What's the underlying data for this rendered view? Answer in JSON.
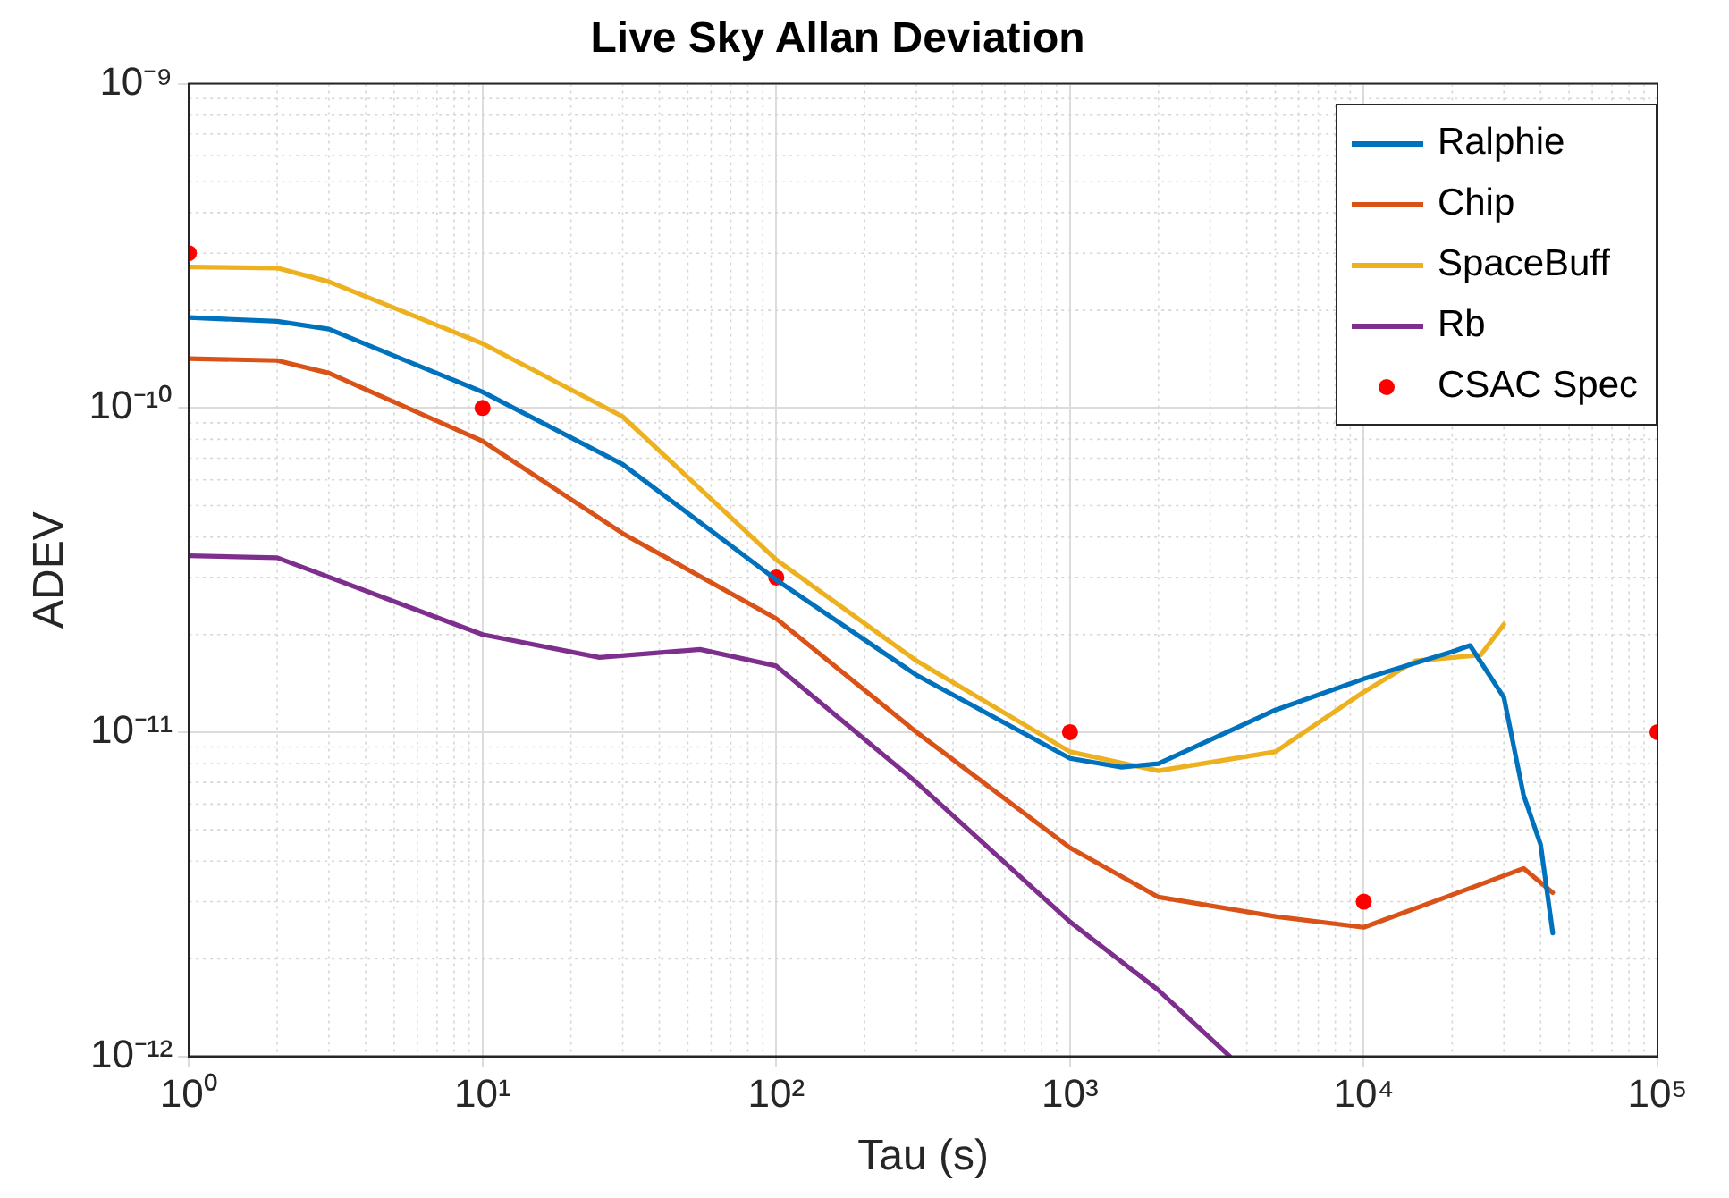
{
  "chart_data": {
    "type": "line",
    "title": "Live Sky Allan Deviation",
    "xlabel": "Tau (s)",
    "ylabel": "ADEV",
    "log": "xy",
    "grid": true,
    "legend": "top right",
    "marker": "none",
    "line_style": "solid",
    "xlim": [
      1,
      100000
    ],
    "ylim": [
      1e-12,
      1e-09
    ],
    "xticks": [
      {
        "value": 1,
        "label": "10⁰"
      },
      {
        "value": 10,
        "label": "10¹"
      },
      {
        "value": 100,
        "label": "10²"
      },
      {
        "value": 1000,
        "label": "10³"
      },
      {
        "value": 10000,
        "label": "10⁴"
      },
      {
        "value": 100000,
        "label": "10⁵"
      }
    ],
    "yticks": [
      {
        "value": 1e-12,
        "label": "10⁻¹²"
      },
      {
        "value": 1e-11,
        "label": "10⁻¹¹"
      },
      {
        "value": 1e-10,
        "label": "10⁻¹⁰"
      },
      {
        "value": 1e-09,
        "label": "10⁻⁹"
      }
    ],
    "series": [
      {
        "name": "Ralphie",
        "color": "#0072bd",
        "x": [
          1,
          2,
          3,
          10,
          30,
          100,
          300,
          1000,
          1500,
          2000,
          5000,
          10000,
          20000,
          23000,
          30000,
          35000,
          40000,
          44000
        ],
        "values": [
          1.9e-10,
          1.85e-10,
          1.75e-10,
          1.12e-10,
          6.7e-11,
          2.95e-11,
          1.5e-11,
          8.3e-12,
          7.8e-12,
          8e-12,
          1.17e-11,
          1.46e-11,
          1.77e-11,
          1.85e-11,
          1.28e-11,
          6.4e-12,
          4.5e-12,
          2.4e-12
        ]
      },
      {
        "name": "Chip",
        "color": "#d95319",
        "x": [
          1,
          2,
          3,
          10,
          30,
          100,
          300,
          1000,
          2000,
          5000,
          10000,
          20000,
          35000,
          44000
        ],
        "values": [
          1.42e-10,
          1.4e-10,
          1.28e-10,
          7.9e-11,
          4.1e-11,
          2.24e-11,
          1e-11,
          4.4e-12,
          3.1e-12,
          2.7e-12,
          2.5e-12,
          3.15e-12,
          3.8e-12,
          3.2e-12
        ]
      },
      {
        "name": "SpaceBuff",
        "color": "#edb120",
        "x": [
          1,
          2,
          3,
          10,
          30,
          100,
          300,
          1000,
          2000,
          5000,
          10000,
          15000,
          25000,
          30000
        ],
        "values": [
          2.72e-10,
          2.7e-10,
          2.45e-10,
          1.58e-10,
          9.4e-11,
          3.4e-11,
          1.66e-11,
          8.7e-12,
          7.6e-12,
          8.7e-12,
          1.33e-11,
          1.66e-11,
          1.73e-11,
          2.15e-11
        ]
      },
      {
        "name": "Rb",
        "color": "#7e2f8e",
        "x": [
          1,
          2,
          10,
          25,
          55,
          100,
          300,
          1000,
          2000,
          3500
        ],
        "values": [
          3.5e-11,
          3.45e-11,
          2e-11,
          1.7e-11,
          1.8e-11,
          1.6e-11,
          7e-12,
          2.6e-12,
          1.6e-12,
          1e-12
        ]
      },
      {
        "name": "CSAC Spec",
        "type": "scatter",
        "marker": "circle",
        "color": "#ff0000",
        "x": [
          1,
          10,
          100,
          1000,
          10000,
          100000
        ],
        "values": [
          3e-10,
          1e-10,
          3e-11,
          1e-11,
          3e-12,
          1e-11
        ]
      }
    ]
  }
}
